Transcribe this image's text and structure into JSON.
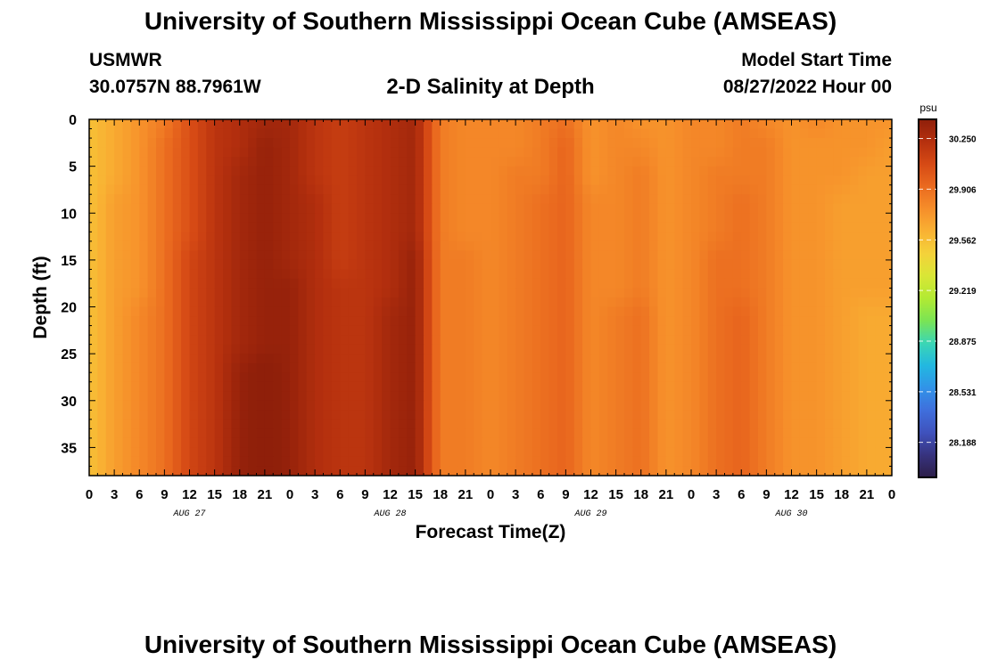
{
  "title": "University of Southern Mississippi Ocean Cube (AMSEAS)",
  "station": {
    "id": "USMWR",
    "coords": "30.0757N  88.7961W"
  },
  "model": {
    "label": "Model Start Time",
    "start": "08/27/2022 Hour 00"
  },
  "chart_data": {
    "type": "heatmap",
    "title": "2-D Salinity at Depth",
    "xlabel": "Forecast Time(Z)",
    "ylabel": "Depth (ft)",
    "xlim": [
      0,
      96
    ],
    "ylim": [
      38,
      0
    ],
    "x_tick_labels": [
      "0",
      "3",
      "6",
      "9",
      "12",
      "15",
      "18",
      "21",
      "0",
      "3",
      "6",
      "9",
      "12",
      "15",
      "18",
      "21",
      "0",
      "3",
      "6",
      "9",
      "12",
      "15",
      "18",
      "21",
      "0",
      "3",
      "6",
      "9",
      "12",
      "15",
      "18",
      "21",
      "0"
    ],
    "y_ticks": [
      0,
      5,
      10,
      15,
      20,
      25,
      30,
      35
    ],
    "day_labels": [
      {
        "label": "AUG 27",
        "hour": 12
      },
      {
        "label": "AUG 28",
        "hour": 36
      },
      {
        "label": "AUG 29",
        "hour": 60
      },
      {
        "label": "AUG 30",
        "hour": 84
      }
    ],
    "colorbar": {
      "unit": "psu",
      "min": 27.95,
      "max": 30.38,
      "ticks": [
        "30.250",
        "29.906",
        "29.562",
        "29.219",
        "28.875",
        "28.531",
        "28.188"
      ],
      "colors": [
        "#2c1e48",
        "#37337e",
        "#3f52bd",
        "#3f6fdc",
        "#3193e8",
        "#22b8e0",
        "#3bd6b4",
        "#7ae454",
        "#b2ea33",
        "#d9e636",
        "#f4d23a",
        "#f9b133",
        "#f68e2a",
        "#ea6a1f",
        "#d64a15",
        "#b5300e",
        "#8f1f0a"
      ]
    },
    "depth_levels_ft": [
      0,
      3,
      6,
      9,
      12,
      15,
      18,
      21,
      24,
      27,
      30,
      33,
      36,
      38
    ],
    "time_hours": [
      0,
      3,
      6,
      9,
      12,
      15,
      18,
      21,
      24,
      27,
      30,
      33,
      36,
      39,
      42,
      45,
      48,
      51,
      54,
      57,
      60,
      63,
      66,
      69,
      72,
      75,
      78,
      81,
      84,
      87,
      90,
      93,
      96
    ],
    "salinity_psu": [
      [
        29.55,
        29.65,
        29.75,
        29.85,
        30.05,
        30.2,
        30.25,
        30.3,
        30.3,
        30.2,
        30.15,
        30.2,
        30.25,
        30.3,
        29.85,
        29.8,
        29.8,
        29.8,
        29.85,
        29.9,
        29.75,
        29.8,
        29.75,
        29.75,
        29.8,
        29.8,
        29.85,
        29.8,
        29.75,
        29.8,
        29.75,
        29.75,
        29.75
      ],
      [
        29.55,
        29.65,
        29.75,
        29.9,
        30.05,
        30.2,
        30.25,
        30.35,
        30.3,
        30.2,
        30.15,
        30.2,
        30.25,
        30.3,
        29.85,
        29.8,
        29.8,
        29.8,
        29.85,
        29.95,
        29.75,
        29.8,
        29.8,
        29.75,
        29.8,
        29.8,
        29.85,
        29.85,
        29.75,
        29.75,
        29.75,
        29.75,
        29.7
      ],
      [
        29.55,
        29.65,
        29.75,
        29.9,
        30.05,
        30.2,
        30.3,
        30.35,
        30.3,
        30.2,
        30.15,
        30.2,
        30.25,
        30.3,
        29.85,
        29.8,
        29.8,
        29.85,
        29.85,
        29.95,
        29.75,
        29.8,
        29.85,
        29.75,
        29.8,
        29.85,
        29.85,
        29.85,
        29.75,
        29.75,
        29.75,
        29.7,
        29.7
      ],
      [
        29.55,
        29.7,
        29.75,
        29.9,
        30.05,
        30.2,
        30.3,
        30.35,
        30.3,
        30.25,
        30.15,
        30.2,
        30.25,
        30.3,
        29.85,
        29.8,
        29.8,
        29.85,
        29.9,
        29.95,
        29.8,
        29.8,
        29.85,
        29.75,
        29.8,
        29.85,
        29.9,
        29.85,
        29.75,
        29.75,
        29.7,
        29.7,
        29.7
      ],
      [
        29.55,
        29.7,
        29.75,
        29.9,
        30.05,
        30.2,
        30.3,
        30.35,
        30.3,
        30.25,
        30.15,
        30.2,
        30.25,
        30.3,
        29.85,
        29.8,
        29.8,
        29.85,
        29.9,
        29.95,
        29.8,
        29.8,
        29.85,
        29.75,
        29.8,
        29.85,
        29.9,
        29.85,
        29.75,
        29.75,
        29.7,
        29.7,
        29.7
      ],
      [
        29.55,
        29.7,
        29.75,
        29.9,
        30.1,
        30.2,
        30.3,
        30.35,
        30.3,
        30.25,
        30.15,
        30.2,
        30.25,
        30.35,
        29.85,
        29.85,
        29.8,
        29.85,
        29.9,
        29.95,
        29.8,
        29.8,
        29.85,
        29.75,
        29.8,
        29.9,
        29.9,
        29.85,
        29.75,
        29.75,
        29.7,
        29.7,
        29.7
      ],
      [
        29.55,
        29.7,
        29.75,
        29.9,
        30.1,
        30.2,
        30.3,
        30.35,
        30.35,
        30.25,
        30.2,
        30.2,
        30.25,
        30.35,
        29.85,
        29.85,
        29.8,
        29.85,
        29.9,
        29.95,
        29.8,
        29.8,
        29.85,
        29.75,
        29.8,
        29.9,
        29.9,
        29.85,
        29.75,
        29.75,
        29.7,
        29.7,
        29.7
      ],
      [
        29.55,
        29.7,
        29.8,
        29.9,
        30.1,
        30.2,
        30.3,
        30.35,
        30.35,
        30.25,
        30.2,
        30.2,
        30.3,
        30.35,
        29.85,
        29.85,
        29.8,
        29.85,
        29.9,
        29.95,
        29.8,
        29.85,
        29.9,
        29.75,
        29.8,
        29.9,
        29.95,
        29.85,
        29.75,
        29.75,
        29.7,
        29.65,
        29.65
      ],
      [
        29.55,
        29.7,
        29.8,
        29.9,
        30.1,
        30.2,
        30.3,
        30.35,
        30.35,
        30.25,
        30.2,
        30.2,
        30.3,
        30.35,
        29.85,
        29.85,
        29.8,
        29.85,
        29.9,
        29.95,
        29.8,
        29.85,
        29.9,
        29.75,
        29.8,
        29.9,
        29.95,
        29.85,
        29.75,
        29.75,
        29.7,
        29.65,
        29.65
      ],
      [
        29.55,
        29.7,
        29.8,
        29.9,
        30.1,
        30.2,
        30.35,
        30.4,
        30.35,
        30.25,
        30.2,
        30.2,
        30.3,
        30.35,
        29.85,
        29.85,
        29.8,
        29.85,
        29.9,
        29.95,
        29.8,
        29.85,
        29.9,
        29.75,
        29.8,
        29.9,
        29.95,
        29.85,
        29.75,
        29.75,
        29.7,
        29.65,
        29.65
      ],
      [
        29.55,
        29.7,
        29.8,
        29.9,
        30.1,
        30.2,
        30.35,
        30.4,
        30.35,
        30.25,
        30.2,
        30.2,
        30.3,
        30.35,
        29.85,
        29.85,
        29.8,
        29.85,
        29.9,
        29.95,
        29.8,
        29.85,
        29.9,
        29.75,
        29.8,
        29.9,
        29.95,
        29.85,
        29.75,
        29.75,
        29.7,
        29.65,
        29.65
      ],
      [
        29.55,
        29.7,
        29.8,
        29.9,
        30.1,
        30.2,
        30.35,
        30.4,
        30.35,
        30.25,
        30.2,
        30.2,
        30.3,
        30.35,
        29.85,
        29.85,
        29.8,
        29.85,
        29.9,
        29.95,
        29.8,
        29.85,
        29.9,
        29.75,
        29.8,
        29.9,
        29.95,
        29.85,
        29.75,
        29.75,
        29.7,
        29.65,
        29.65
      ],
      [
        29.55,
        29.7,
        29.8,
        29.9,
        30.1,
        30.2,
        30.35,
        30.4,
        30.35,
        30.25,
        30.2,
        30.2,
        30.3,
        30.35,
        29.85,
        29.85,
        29.8,
        29.85,
        29.9,
        29.95,
        29.8,
        29.85,
        29.9,
        29.75,
        29.8,
        29.9,
        29.95,
        29.85,
        29.75,
        29.75,
        29.7,
        29.65,
        29.65
      ],
      [
        29.55,
        29.7,
        29.8,
        29.9,
        30.1,
        30.2,
        30.35,
        30.4,
        30.35,
        30.25,
        30.2,
        30.2,
        30.3,
        30.35,
        29.85,
        29.85,
        29.8,
        29.85,
        29.9,
        29.95,
        29.8,
        29.85,
        29.9,
        29.75,
        29.8,
        29.9,
        29.95,
        29.85,
        29.75,
        29.75,
        29.7,
        29.65,
        29.65
      ]
    ]
  }
}
